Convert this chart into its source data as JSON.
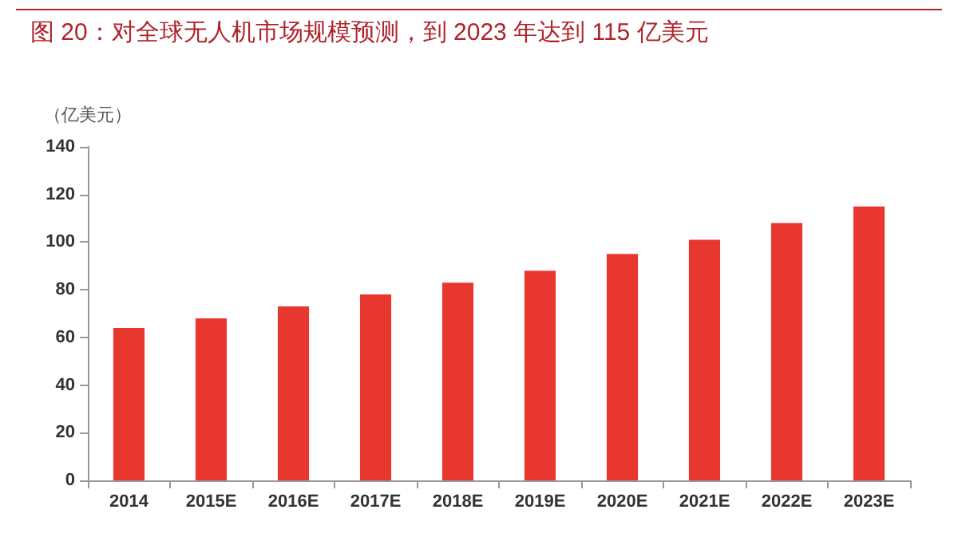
{
  "chart_data": {
    "type": "bar",
    "title": "图 20：对全球无人机市场规模预测，到 2023 年达到 115 亿美元",
    "ylabel": "（亿美元）",
    "categories": [
      "2014",
      "2015E",
      "2016E",
      "2017E",
      "2018E",
      "2019E",
      "2020E",
      "2021E",
      "2022E",
      "2023E"
    ],
    "values": [
      64,
      68,
      73,
      78,
      83,
      88,
      95,
      101,
      108,
      115
    ],
    "color": "#e8372f",
    "ylim": [
      0,
      140
    ],
    "yticks": [
      0,
      20,
      40,
      60,
      80,
      100,
      120,
      140
    ],
    "grid": false
  }
}
